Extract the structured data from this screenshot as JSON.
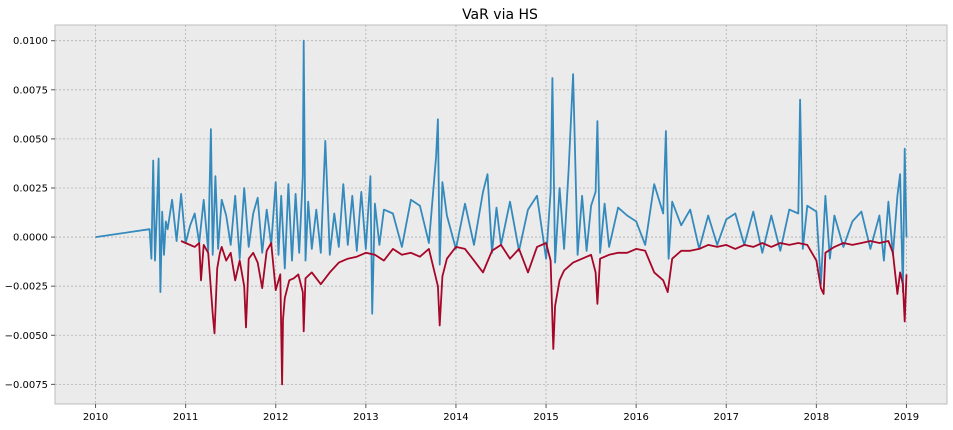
{
  "chart_data": {
    "type": "line",
    "title": "VaR via HS",
    "xlabel": "",
    "ylabel": "",
    "xlim": [
      2009.55,
      2019.45
    ],
    "ylim": [
      -0.0085,
      0.0108
    ],
    "grid": true,
    "legend": "none",
    "background": "#EBEBEB",
    "x_tick_labels": [
      "2010",
      "2011",
      "2012",
      "2013",
      "2014",
      "2015",
      "2016",
      "2017",
      "2018",
      "2019"
    ],
    "x_tick_values": [
      2010,
      2011,
      2012,
      2013,
      2014,
      2015,
      2016,
      2017,
      2018,
      2019
    ],
    "y_tick_labels": [
      "0.0100",
      "0.0075",
      "0.0050",
      "0.0025",
      "0.0000",
      "−0.0025",
      "−0.0050",
      "−0.0075"
    ],
    "y_tick_values": [
      0.01,
      0.0075,
      0.005,
      0.0025,
      0.0,
      -0.0025,
      -0.005,
      -0.0075
    ],
    "series": [
      {
        "color": "#348ABD",
        "x": [
          2010.0,
          2010.6,
          2010.62,
          2010.64,
          2010.66,
          2010.68,
          2010.7,
          2010.72,
          2010.74,
          2010.76,
          2010.78,
          2010.8,
          2010.85,
          2010.9,
          2010.95,
          2011.0,
          2011.05,
          2011.1,
          2011.15,
          2011.2,
          2011.25,
          2011.28,
          2011.3,
          2011.33,
          2011.36,
          2011.4,
          2011.45,
          2011.5,
          2011.55,
          2011.6,
          2011.65,
          2011.7,
          2011.75,
          2011.8,
          2011.85,
          2011.9,
          2011.95,
          2012.0,
          2012.03,
          2012.06,
          2012.1,
          2012.14,
          2012.18,
          2012.22,
          2012.26,
          2012.3,
          2012.31,
          2012.33,
          2012.36,
          2012.4,
          2012.45,
          2012.5,
          2012.55,
          2012.6,
          2012.65,
          2012.7,
          2012.75,
          2012.8,
          2012.85,
          2012.9,
          2012.95,
          2013.0,
          2013.05,
          2013.07,
          2013.1,
          2013.15,
          2013.2,
          2013.3,
          2013.4,
          2013.5,
          2013.6,
          2013.7,
          2013.78,
          2013.8,
          2013.82,
          2013.85,
          2013.9,
          2014.0,
          2014.1,
          2014.2,
          2014.3,
          2014.35,
          2014.4,
          2014.45,
          2014.5,
          2014.6,
          2014.7,
          2014.8,
          2014.9,
          2015.0,
          2015.05,
          2015.07,
          2015.1,
          2015.15,
          2015.2,
          2015.25,
          2015.3,
          2015.35,
          2015.4,
          2015.45,
          2015.5,
          2015.55,
          2015.57,
          2015.6,
          2015.65,
          2015.7,
          2015.8,
          2015.9,
          2016.0,
          2016.1,
          2016.2,
          2016.3,
          2016.33,
          2016.36,
          2016.4,
          2016.5,
          2016.6,
          2016.7,
          2016.8,
          2016.9,
          2017.0,
          2017.1,
          2017.2,
          2017.3,
          2017.4,
          2017.5,
          2017.6,
          2017.7,
          2017.8,
          2017.82,
          2017.85,
          2017.9,
          2018.0,
          2018.05,
          2018.1,
          2018.15,
          2018.2,
          2018.3,
          2018.4,
          2018.5,
          2018.6,
          2018.7,
          2018.75,
          2018.8,
          2018.85,
          2018.9,
          2018.93,
          2018.96,
          2018.98,
          2019.0
        ],
        "y": [
          0.0,
          0.0004,
          -0.0011,
          0.0039,
          -0.0012,
          0.0012,
          0.004,
          -0.0028,
          0.0013,
          -0.0009,
          0.0008,
          0.0004,
          0.0019,
          -0.0002,
          0.0022,
          -0.0003,
          0.0006,
          0.0012,
          -0.0003,
          0.0019,
          -0.0007,
          0.0055,
          -0.0009,
          0.0031,
          -0.0006,
          0.0019,
          0.0011,
          -0.0004,
          0.0021,
          -0.0011,
          0.0025,
          -0.0005,
          0.0012,
          0.002,
          -0.0008,
          0.0014,
          -0.0004,
          0.0028,
          -0.0009,
          0.0021,
          -0.0016,
          0.0027,
          -0.0012,
          0.0022,
          -0.0008,
          0.0031,
          0.01,
          -0.0012,
          0.0018,
          -0.0006,
          0.0014,
          -0.0008,
          0.0049,
          -0.0009,
          0.0012,
          -0.0005,
          0.0027,
          -0.0004,
          0.0021,
          -0.0007,
          0.0023,
          -0.0006,
          0.0031,
          -0.0039,
          0.0017,
          -0.0004,
          0.0014,
          0.0012,
          -0.0005,
          0.0019,
          0.0016,
          -0.0003,
          0.0041,
          0.006,
          -0.0014,
          0.0028,
          0.0011,
          -0.0006,
          0.0017,
          -0.0004,
          0.0023,
          0.0032,
          -0.0008,
          0.0015,
          -0.0004,
          0.0018,
          -0.0007,
          0.0014,
          0.0021,
          -0.0011,
          0.0023,
          0.0081,
          -0.0013,
          0.0025,
          -0.0006,
          0.0034,
          0.0083,
          -0.0009,
          0.0021,
          -0.0007,
          0.0016,
          0.0023,
          0.0059,
          -0.0008,
          0.0017,
          -0.0005,
          0.0015,
          0.0011,
          0.0008,
          -0.0004,
          0.0027,
          0.0012,
          0.0054,
          -0.0011,
          0.0018,
          0.0006,
          0.0014,
          -0.0006,
          0.0011,
          -0.0004,
          0.0009,
          0.0012,
          -0.0004,
          0.0013,
          -0.0008,
          0.0011,
          -0.0007,
          0.0014,
          0.0012,
          0.007,
          -0.0006,
          0.0016,
          0.0013,
          -0.0024,
          0.0021,
          -0.0011,
          0.0011,
          -0.0005,
          0.0008,
          0.0013,
          -0.0006,
          0.0011,
          -0.0012,
          0.0018,
          -0.0009,
          0.0021,
          0.0032,
          -0.0028,
          0.0045,
          0.0
        ]
      },
      {
        "color": "#A60628",
        "x": [
          2010.95,
          2011.0,
          2011.1,
          2011.15,
          2011.17,
          2011.2,
          2011.25,
          2011.3,
          2011.32,
          2011.35,
          2011.38,
          2011.4,
          2011.45,
          2011.5,
          2011.55,
          2011.6,
          2011.65,
          2011.67,
          2011.7,
          2011.75,
          2011.8,
          2011.85,
          2011.9,
          2011.95,
          2012.0,
          2012.05,
          2012.07,
          2012.08,
          2012.1,
          2012.15,
          2012.2,
          2012.25,
          2012.3,
          2012.31,
          2012.33,
          2012.4,
          2012.5,
          2012.6,
          2012.7,
          2012.8,
          2012.9,
          2013.0,
          2013.1,
          2013.2,
          2013.3,
          2013.4,
          2013.5,
          2013.6,
          2013.7,
          2013.8,
          2013.82,
          2013.85,
          2013.9,
          2014.0,
          2014.1,
          2014.2,
          2014.3,
          2014.4,
          2014.5,
          2014.6,
          2014.7,
          2014.8,
          2014.9,
          2015.0,
          2015.05,
          2015.08,
          2015.1,
          2015.15,
          2015.2,
          2015.3,
          2015.4,
          2015.5,
          2015.55,
          2015.57,
          2015.6,
          2015.7,
          2015.8,
          2015.9,
          2016.0,
          2016.1,
          2016.2,
          2016.3,
          2016.35,
          2016.4,
          2016.5,
          2016.6,
          2016.7,
          2016.8,
          2016.9,
          2017.0,
          2017.1,
          2017.2,
          2017.3,
          2017.4,
          2017.5,
          2017.6,
          2017.7,
          2017.8,
          2017.9,
          2018.0,
          2018.05,
          2018.08,
          2018.1,
          2018.2,
          2018.3,
          2018.4,
          2018.5,
          2018.6,
          2018.7,
          2018.8,
          2018.85,
          2018.9,
          2018.93,
          2018.96,
          2018.98,
          2019.0
        ],
        "y": [
          -0.0002,
          -0.0003,
          -0.0005,
          -0.0003,
          -0.0022,
          -0.0004,
          -0.0008,
          -0.0039,
          -0.0049,
          -0.0016,
          -0.0008,
          -0.0005,
          -0.0012,
          -0.0008,
          -0.0022,
          -0.0012,
          -0.0025,
          -0.0046,
          -0.0011,
          -0.0008,
          -0.0013,
          -0.0026,
          -0.0007,
          -0.0003,
          -0.0027,
          -0.0019,
          -0.0075,
          -0.0042,
          -0.0031,
          -0.0022,
          -0.0021,
          -0.0019,
          -0.0028,
          -0.0048,
          -0.0021,
          -0.0018,
          -0.0024,
          -0.0018,
          -0.0013,
          -0.0011,
          -0.001,
          -0.0008,
          -0.0009,
          -0.0012,
          -0.0006,
          -0.0009,
          -0.0008,
          -0.001,
          -0.0006,
          -0.0025,
          -0.0045,
          -0.002,
          -0.0011,
          -0.0005,
          -0.0006,
          -0.0012,
          -0.0018,
          -0.0007,
          -0.0004,
          -0.0011,
          -0.0006,
          -0.0018,
          -0.0005,
          -0.0003,
          -0.0012,
          -0.0057,
          -0.0035,
          -0.0022,
          -0.0017,
          -0.0013,
          -0.0011,
          -0.0009,
          -0.0018,
          -0.0034,
          -0.0011,
          -0.0009,
          -0.0008,
          -0.0008,
          -0.0006,
          -0.0007,
          -0.0018,
          -0.0022,
          -0.0028,
          -0.0011,
          -0.0007,
          -0.0007,
          -0.0006,
          -0.0004,
          -0.0005,
          -0.0004,
          -0.0006,
          -0.0004,
          -0.0005,
          -0.0003,
          -0.0005,
          -0.0003,
          -0.0004,
          -0.0003,
          -0.0004,
          -0.0012,
          -0.0026,
          -0.0029,
          -0.0008,
          -0.0005,
          -0.0003,
          -0.0004,
          -0.0003,
          -0.0002,
          -0.0003,
          -0.0002,
          -0.0008,
          -0.0029,
          -0.0018,
          -0.0024,
          -0.0043,
          -0.0019
        ]
      }
    ]
  }
}
